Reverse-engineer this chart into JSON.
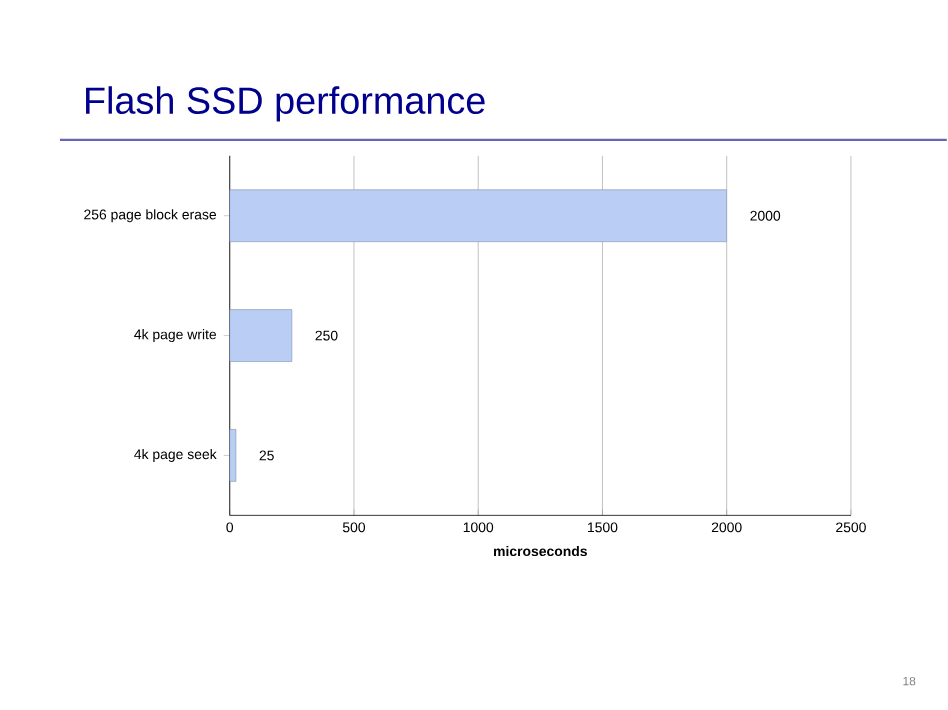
{
  "chart_data": {
    "type": "bar",
    "orientation": "horizontal",
    "title": "Flash SSD performance",
    "xlabel": "microseconds",
    "categories": [
      "256 page block erase",
      "4k page write",
      "4k page seek"
    ],
    "values": [
      2000,
      250,
      25
    ],
    "color": "#b9cdf5",
    "xlim": [
      0,
      2500
    ],
    "xticks": [
      0,
      500,
      1000,
      1500,
      2000,
      2500
    ],
    "grid": "x",
    "data_labels": true,
    "annotations": [
      "18"
    ]
  }
}
